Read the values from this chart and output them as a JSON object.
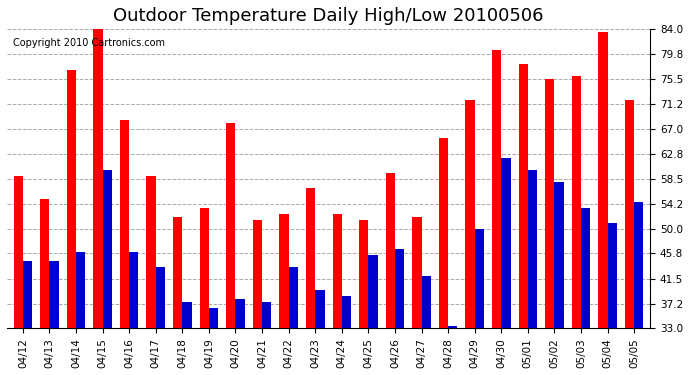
{
  "title": "Outdoor Temperature Daily High/Low 20100506",
  "copyright": "Copyright 2010 Cartronics.com",
  "dates": [
    "04/12",
    "04/13",
    "04/14",
    "04/15",
    "04/16",
    "04/17",
    "04/18",
    "04/19",
    "04/20",
    "04/21",
    "04/22",
    "04/23",
    "04/24",
    "04/25",
    "04/26",
    "04/27",
    "04/28",
    "04/29",
    "04/30",
    "05/01",
    "05/02",
    "05/03",
    "05/04",
    "05/05"
  ],
  "highs": [
    59.0,
    55.0,
    77.0,
    84.0,
    68.5,
    59.0,
    52.0,
    53.5,
    68.0,
    51.5,
    52.5,
    57.0,
    52.5,
    51.5,
    59.5,
    52.0,
    65.5,
    72.0,
    80.5,
    78.0,
    75.5,
    76.0,
    83.5,
    72.0
  ],
  "lows": [
    44.5,
    44.5,
    46.0,
    60.0,
    46.0,
    43.5,
    37.5,
    36.5,
    38.0,
    37.5,
    43.5,
    39.5,
    38.5,
    45.5,
    46.5,
    42.0,
    33.5,
    50.0,
    62.0,
    60.0,
    58.0,
    53.5,
    51.0,
    54.5
  ],
  "high_color": "#ff0000",
  "low_color": "#0000cc",
  "bg_color": "#ffffff",
  "grid_color": "#aaaaaa",
  "ylim_min": 33.0,
  "ylim_max": 84.0,
  "yticks": [
    33.0,
    37.2,
    41.5,
    45.8,
    50.0,
    54.2,
    58.5,
    62.8,
    67.0,
    71.2,
    75.5,
    79.8,
    84.0
  ],
  "bar_width": 0.35,
  "title_fontsize": 13,
  "tick_fontsize": 7.5,
  "copyright_fontsize": 7
}
